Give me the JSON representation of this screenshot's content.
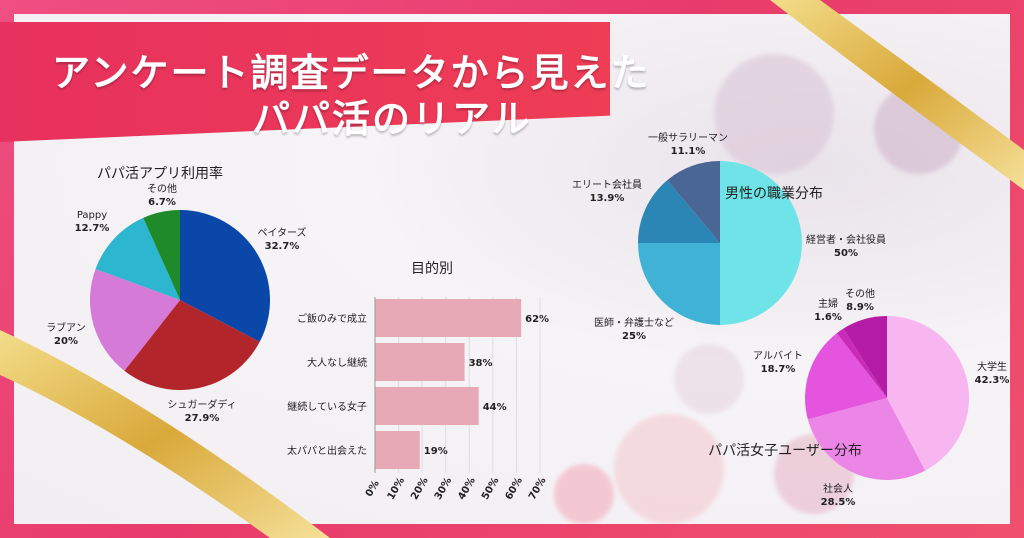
{
  "title": {
    "line1": "アンケート調査データから見えた",
    "line2": "パパ活のリアル"
  },
  "colors": {
    "frame": "#ec4a78",
    "banner": "#e9355d",
    "ribbon": "#e5c35a"
  },
  "chart_data": [
    {
      "type": "pie",
      "title": "パパ活アプリ利用率",
      "slices": [
        {
          "label": "ペイターズ",
          "value": 32.7,
          "value_label": "32.7%",
          "color": "#0a47a8"
        },
        {
          "label": "シュガーダディ",
          "value": 27.9,
          "value_label": "27.9%",
          "color": "#b2262b"
        },
        {
          "label": "ラブアン",
          "value": 20.0,
          "value_label": "20%",
          "color": "#d57ad6"
        },
        {
          "label": "Pappy",
          "value": 12.7,
          "value_label": "12.7%",
          "color": "#2cb6cf"
        },
        {
          "label": "その他",
          "value": 6.7,
          "value_label": "6.7%",
          "color": "#1e8a2a"
        }
      ]
    },
    {
      "type": "bar",
      "orientation": "horizontal",
      "title": "目的別",
      "categories": [
        "ご飯のみで成立",
        "大人なし継続",
        "継続している女子",
        "太パパと出会えた"
      ],
      "values": [
        62,
        38,
        44,
        19
      ],
      "value_labels": [
        "62%",
        "38%",
        "44%",
        "19%"
      ],
      "xlim": [
        0,
        70
      ],
      "xticks": [
        "0%",
        "10%",
        "20%",
        "30%",
        "40%",
        "50%",
        "60%",
        "70%"
      ],
      "color": "#e8a9b6"
    },
    {
      "type": "pie",
      "title": "男性の職業分布",
      "slices": [
        {
          "label": "経営者・会社役員",
          "value": 50,
          "value_label": "50%",
          "color": "#6ee3e8"
        },
        {
          "label": "医師・弁護士など",
          "value": 25,
          "value_label": "25%",
          "color": "#3fb2d6"
        },
        {
          "label": "エリート会社員",
          "value": 13.9,
          "value_label": "13.9%",
          "color": "#2c86b5"
        },
        {
          "label": "一般サラリーマン",
          "value": 11.1,
          "value_label": "11.1%",
          "color": "#4a6694"
        }
      ]
    },
    {
      "type": "pie",
      "title": "パパ活女子ユーザー分布",
      "slices": [
        {
          "label": "大学生",
          "value": 42.3,
          "value_label": "42.3%",
          "color": "#f7b6f0"
        },
        {
          "label": "社会人",
          "value": 28.5,
          "value_label": "28.5%",
          "color": "#ec86e6"
        },
        {
          "label": "アルバイト",
          "value": 18.7,
          "value_label": "18.7%",
          "color": "#e454de"
        },
        {
          "label": "主婦",
          "value": 1.6,
          "value_label": "1.6%",
          "color": "#c92bb8"
        },
        {
          "label": "その他",
          "value": 8.9,
          "value_label": "8.9%",
          "color": "#b51ca5"
        }
      ]
    }
  ]
}
